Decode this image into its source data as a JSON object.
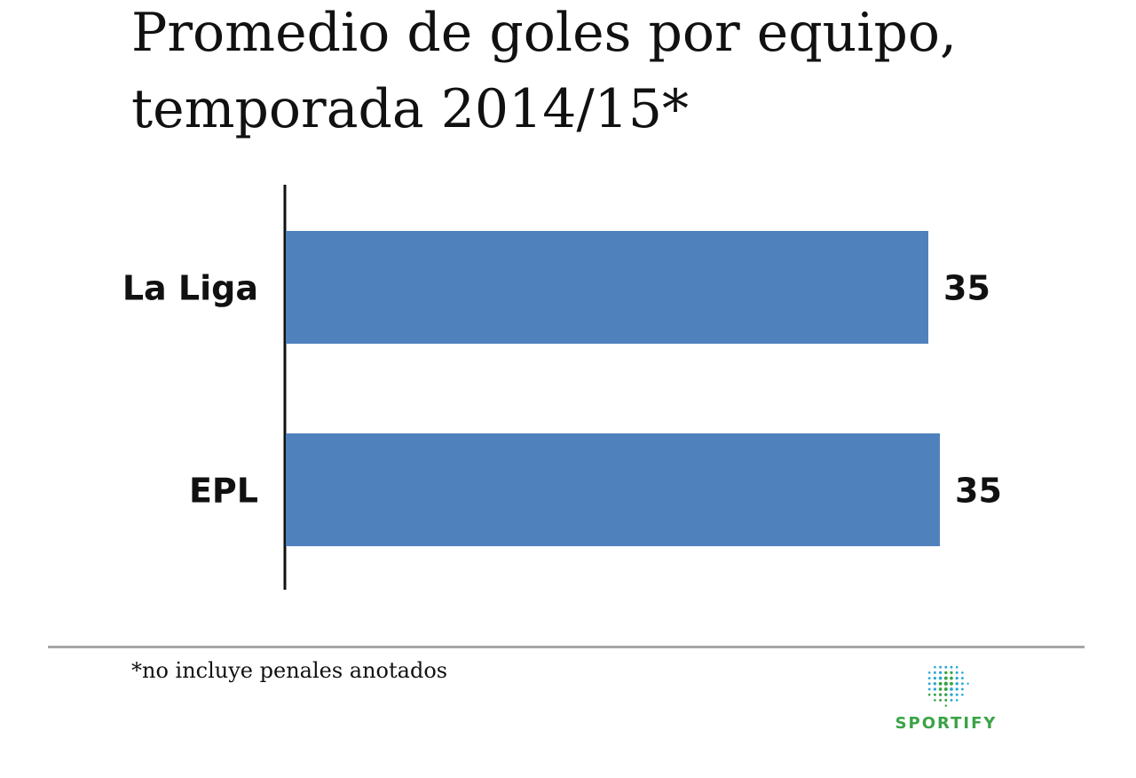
{
  "header": {
    "title_line1": "Promedio de goles por equipo,",
    "title_line2": "temporada 2014/15*"
  },
  "footer": {
    "footnote": "*no incluye penales anotados",
    "brand": "SPORTIFY"
  },
  "colors": {
    "bar": "#4f81bd",
    "axis": "#111111",
    "divider": "#a6a6a6",
    "logo_blue": "#29a8d9",
    "logo_green": "#3aa346"
  },
  "chart_data": {
    "type": "bar",
    "orientation": "horizontal",
    "title": "Promedio de goles por equipo, temporada 2014/15*",
    "categories": [
      "La Liga",
      "EPL"
    ],
    "values": [
      35,
      35
    ],
    "value_labels": [
      "35",
      "35"
    ],
    "xlabel": "",
    "ylabel": "",
    "grid": false,
    "legend": "none"
  }
}
